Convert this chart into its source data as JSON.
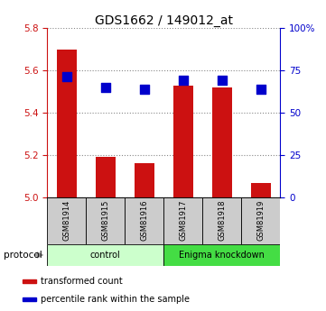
{
  "title": "GDS1662 / 149012_at",
  "samples": [
    "GSM81914",
    "GSM81915",
    "GSM81916",
    "GSM81917",
    "GSM81918",
    "GSM81919"
  ],
  "bar_values": [
    5.7,
    5.19,
    5.16,
    5.53,
    5.52,
    5.07
  ],
  "blue_values": [
    5.57,
    5.52,
    5.51,
    5.555,
    5.555,
    5.51
  ],
  "bar_base": 5.0,
  "ylim_left": [
    5.0,
    5.8
  ],
  "ylim_right": [
    0,
    100
  ],
  "left_ticks": [
    5.0,
    5.2,
    5.4,
    5.6,
    5.8
  ],
  "right_ticks": [
    0,
    25,
    50,
    75,
    100
  ],
  "right_tick_labels": [
    "0",
    "25",
    "50",
    "75",
    "100%"
  ],
  "bar_color": "#cc1111",
  "blue_color": "#0000cc",
  "protocol_groups": [
    {
      "label": "control",
      "start": 0,
      "end": 2,
      "color": "#ccffcc"
    },
    {
      "label": "Enigma knockdown",
      "start": 3,
      "end": 5,
      "color": "#44dd44"
    }
  ],
  "legend_items": [
    {
      "label": "transformed count",
      "color": "#cc1111"
    },
    {
      "label": "percentile rank within the sample",
      "color": "#0000cc"
    }
  ],
  "sample_box_color": "#cccccc",
  "protocol_label": "protocol",
  "bar_width": 0.5,
  "blue_marker_size": 55
}
